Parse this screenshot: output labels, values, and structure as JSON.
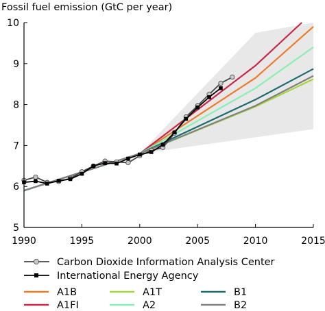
{
  "chart_data": {
    "type": "line",
    "title": "Fossil fuel emission (GtC per year)",
    "xlabel": "",
    "ylabel": "",
    "xlim": [
      1990,
      2015
    ],
    "ylim": [
      5,
      10
    ],
    "x_ticks": [
      1990,
      1995,
      2000,
      2005,
      2010,
      2015
    ],
    "y_ticks": [
      5,
      6,
      7,
      8,
      9,
      10
    ],
    "grid": false,
    "legend_position": "bottom",
    "uncertainty_band": {
      "color": "#e8e8e8",
      "upper": [
        [
          2000,
          6.8
        ],
        [
          2010,
          9.75
        ],
        [
          2015,
          10.0
        ]
      ],
      "lower": [
        [
          2000,
          6.8
        ],
        [
          2015,
          7.4
        ]
      ]
    },
    "series": [
      {
        "name": "Carbon Dioxide Information Analysis Center",
        "color": "#444444",
        "marker": "circle",
        "marker_fill": "#c8c8c8",
        "x": [
          1990,
          1991,
          1992,
          1993,
          1994,
          1995,
          1996,
          1997,
          1998,
          1999,
          2000,
          2001,
          2002,
          2003,
          2004,
          2005,
          2006,
          2007,
          2008
        ],
        "y": [
          6.15,
          6.23,
          6.1,
          6.12,
          6.2,
          6.36,
          6.5,
          6.62,
          6.6,
          6.58,
          6.75,
          6.88,
          6.95,
          7.3,
          7.7,
          7.97,
          8.25,
          8.52,
          8.67
        ]
      },
      {
        "name": "International Energy Agency",
        "color": "#000000",
        "marker": "square",
        "marker_fill": "#000000",
        "x": [
          1990,
          1991,
          1992,
          1993,
          1994,
          1995,
          1996,
          1997,
          1998,
          1999,
          2000,
          2001,
          2002,
          2003,
          2004,
          2005,
          2006,
          2007
        ],
        "y": [
          6.1,
          6.13,
          6.07,
          6.14,
          6.18,
          6.31,
          6.5,
          6.57,
          6.56,
          6.68,
          6.78,
          6.84,
          7.02,
          7.32,
          7.65,
          7.93,
          8.18,
          8.4
        ]
      },
      {
        "name": "A1B",
        "color": "#ee7a28",
        "x": [
          1990,
          2000,
          2010,
          2015
        ],
        "y": [
          5.9,
          6.8,
          8.65,
          9.9
        ]
      },
      {
        "name": "A1FI",
        "color": "#cc2444",
        "x": [
          1990,
          2000,
          2010,
          2014
        ],
        "y": [
          5.9,
          6.8,
          8.95,
          10.0
        ]
      },
      {
        "name": "A1T",
        "color": "#a6d63a",
        "x": [
          1990,
          2000,
          2010,
          2015
        ],
        "y": [
          5.9,
          6.8,
          7.95,
          8.62
        ]
      },
      {
        "name": "A2",
        "color": "#86f0b4",
        "x": [
          1990,
          2000,
          2010,
          2015
        ],
        "y": [
          5.9,
          6.8,
          8.4,
          9.4
        ]
      },
      {
        "name": "B1",
        "color": "#1e6b6e",
        "x": [
          1990,
          2000,
          2010,
          2015
        ],
        "y": [
          5.9,
          6.8,
          8.12,
          8.87
        ]
      },
      {
        "name": "B2",
        "color": "#808080",
        "x": [
          1990,
          2000,
          2010,
          2015
        ],
        "y": [
          5.9,
          6.8,
          7.97,
          8.7
        ]
      }
    ]
  }
}
